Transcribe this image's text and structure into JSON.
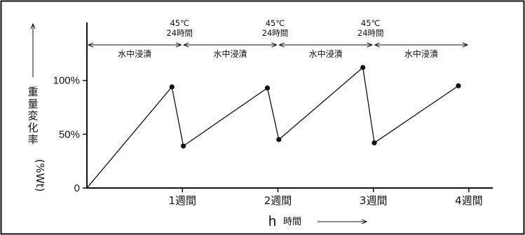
{
  "chart_data": {
    "type": "line",
    "ylabel_chars": [
      "重",
      "量",
      "変",
      "化",
      "率"
    ],
    "ylabel_unit": "(%Wt)",
    "xlabel_unit": "h",
    "xlabel": "時間",
    "x_tick_labels": [
      "1週間",
      "2週間",
      "3週間",
      "4週間"
    ],
    "y_tick_labels": [
      "0",
      "50%",
      "100%"
    ],
    "ylim": [
      0,
      150
    ],
    "xlim": [
      0,
      4.25
    ],
    "series": [
      {
        "points": [
          {
            "x": 0,
            "y": 0
          },
          {
            "x": 0.89,
            "y": 94
          },
          {
            "x": 1.01,
            "y": 39
          },
          {
            "x": 1.89,
            "y": 93
          },
          {
            "x": 2.01,
            "y": 45
          },
          {
            "x": 2.89,
            "y": 112
          },
          {
            "x": 3.01,
            "y": 42
          },
          {
            "x": 3.89,
            "y": 95
          }
        ]
      }
    ],
    "annotations": {
      "heat_labels": [
        {
          "line1": "45℃",
          "line2": "24時間"
        },
        {
          "line1": "45℃",
          "line2": "24時間"
        },
        {
          "line1": "45℃",
          "line2": "24時間"
        }
      ],
      "phase_labels": [
        "水中浸漬",
        "水中浸漬",
        "水中浸漬",
        "水中浸漬"
      ]
    },
    "grid": false,
    "legend": "none"
  }
}
